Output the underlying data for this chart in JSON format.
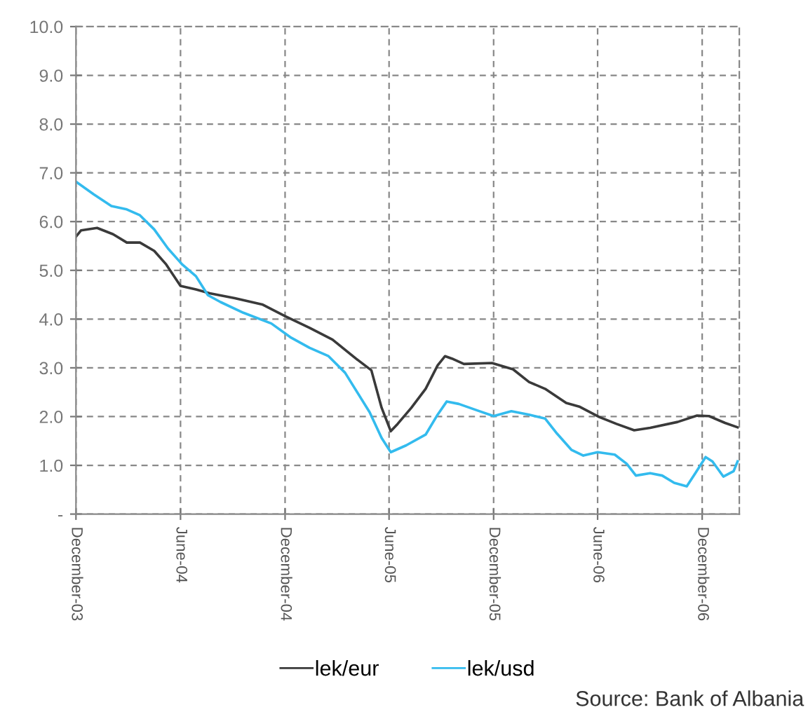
{
  "chart_data": {
    "type": "line",
    "xlim": [
      "2003-12-01",
      "2007-02-04"
    ],
    "xticks": [
      {
        "value": "2003-12-01",
        "label": "December-03"
      },
      {
        "value": "2004-06-01",
        "label": "June-04"
      },
      {
        "value": "2004-12-01",
        "label": "December-04"
      },
      {
        "value": "2005-06-01",
        "label": "June-05"
      },
      {
        "value": "2005-12-01",
        "label": "December-05"
      },
      {
        "value": "2006-06-01",
        "label": "June-06"
      },
      {
        "value": "2006-12-01",
        "label": "December-06"
      }
    ],
    "ylim": [
      0,
      10
    ],
    "yticks": [
      {
        "value": 0,
        "label": "-"
      },
      {
        "value": 1,
        "label": "1.0"
      },
      {
        "value": 2,
        "label": "2.0"
      },
      {
        "value": 3,
        "label": "3.0"
      },
      {
        "value": 4,
        "label": "4.0"
      },
      {
        "value": 5,
        "label": "5.0"
      },
      {
        "value": 6,
        "label": "6.0"
      },
      {
        "value": 7,
        "label": "7.0"
      },
      {
        "value": 8,
        "label": "8.0"
      },
      {
        "value": 9,
        "label": "9.0"
      },
      {
        "value": 10,
        "label": "10.0"
      }
    ],
    "grid": true,
    "legend": "bottom",
    "line_style": "solid",
    "marker": "none",
    "annotations": [
      "Source: Bank of Albania"
    ],
    "series": [
      {
        "name": "lek/eur",
        "color": "#3a3a3a",
        "x": [
          "2003-12-01",
          "2003-12-10",
          "2004-01-07",
          "2004-02-04",
          "2004-02-28",
          "2004-03-22",
          "2004-04-16",
          "2004-05-07",
          "2004-06-01",
          "2004-06-28",
          "2004-07-22",
          "2004-09-04",
          "2004-10-22",
          "2004-12-01",
          "2005-01-13",
          "2005-02-22",
          "2005-04-04",
          "2005-05-01",
          "2005-05-19",
          "2005-06-04",
          "2005-06-16",
          "2005-07-10",
          "2005-08-04",
          "2005-08-25",
          "2005-09-07",
          "2005-09-19",
          "2005-10-10",
          "2005-11-28",
          "2006-01-04",
          "2006-02-01",
          "2006-03-01",
          "2006-04-07",
          "2006-05-01",
          "2006-06-04",
          "2006-07-04",
          "2006-08-04",
          "2006-09-01",
          "2006-10-19",
          "2006-11-22",
          "2006-12-13",
          "2007-01-10",
          "2007-02-01"
        ],
        "values": [
          5.69,
          5.82,
          5.87,
          5.74,
          5.57,
          5.57,
          5.4,
          5.12,
          4.68,
          4.61,
          4.53,
          4.43,
          4.3,
          4.06,
          3.82,
          3.58,
          3.19,
          2.95,
          2.18,
          1.7,
          1.85,
          2.18,
          2.57,
          3.05,
          3.24,
          3.19,
          3.08,
          3.1,
          2.97,
          2.71,
          2.57,
          2.28,
          2.2,
          1.99,
          1.85,
          1.72,
          1.77,
          1.89,
          2.02,
          2.01,
          1.87,
          1.78
        ]
      },
      {
        "name": "lek/usd",
        "color": "#33bbee",
        "x": [
          "2003-12-01",
          "2004-01-01",
          "2004-02-01",
          "2004-02-28",
          "2004-03-22",
          "2004-04-16",
          "2004-05-10",
          "2004-06-04",
          "2004-06-28",
          "2004-07-19",
          "2004-08-10",
          "2004-09-19",
          "2004-11-07",
          "2004-12-10",
          "2005-01-13",
          "2005-02-15",
          "2005-03-16",
          "2005-04-28",
          "2005-05-19",
          "2005-06-04",
          "2005-07-01",
          "2005-08-04",
          "2005-08-25",
          "2005-09-10",
          "2005-10-01",
          "2005-11-04",
          "2005-12-01",
          "2006-01-01",
          "2006-02-01",
          "2006-03-01",
          "2006-03-22",
          "2006-04-16",
          "2006-05-07",
          "2006-06-01",
          "2006-07-01",
          "2006-07-22",
          "2006-08-07",
          "2006-09-01",
          "2006-09-22",
          "2006-10-13",
          "2006-11-04",
          "2006-11-19",
          "2006-12-07",
          "2006-12-19",
          "2007-01-07",
          "2007-01-25",
          "2007-02-01"
        ],
        "values": [
          6.82,
          6.56,
          6.32,
          6.25,
          6.13,
          5.84,
          5.45,
          5.12,
          4.88,
          4.49,
          4.35,
          4.13,
          3.91,
          3.63,
          3.41,
          3.24,
          2.9,
          2.09,
          1.56,
          1.27,
          1.41,
          1.63,
          2.04,
          2.31,
          2.26,
          2.12,
          2.01,
          2.11,
          2.04,
          1.96,
          1.65,
          1.32,
          1.2,
          1.27,
          1.22,
          1.03,
          0.79,
          0.84,
          0.79,
          0.64,
          0.57,
          0.84,
          1.17,
          1.08,
          0.77,
          0.88,
          1.08
        ]
      }
    ]
  }
}
